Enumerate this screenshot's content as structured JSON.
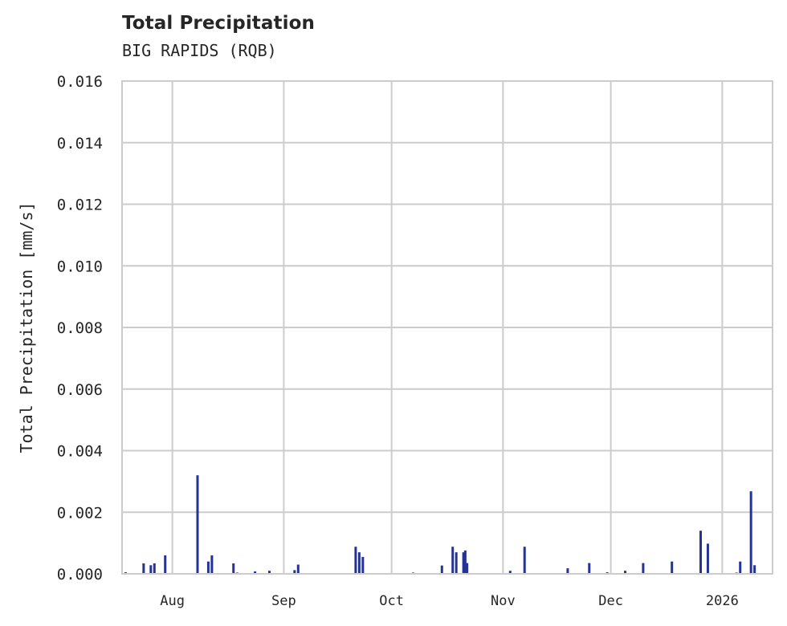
{
  "chart_data": {
    "type": "bar",
    "title": "Total Precipitation",
    "subtitle": "BIG RAPIDS (RQB)",
    "xlabel": "",
    "ylabel": "Total Precipitation [mm/s]",
    "ylim": [
      0,
      0.016
    ],
    "xlim": [
      "2025-07-18",
      "2026-01-15"
    ],
    "grid": true,
    "legend": null,
    "series_color": "#253494",
    "y_ticks": [
      "0.000",
      "0.002",
      "0.004",
      "0.006",
      "0.008",
      "0.010",
      "0.012",
      "0.014",
      "0.016"
    ],
    "x_ticks": [
      {
        "label": "Aug",
        "date": "2025-08-01"
      },
      {
        "label": "Sep",
        "date": "2025-09-01"
      },
      {
        "label": "Oct",
        "date": "2025-10-01"
      },
      {
        "label": "Nov",
        "date": "2025-11-01"
      },
      {
        "label": "Dec",
        "date": "2025-12-01"
      },
      {
        "label": "2026",
        "date": "2026-01-01"
      }
    ],
    "series": [
      {
        "name": "Total Precipitation",
        "points": [
          {
            "x": "2025-07-19",
            "y": 5e-05
          },
          {
            "x": "2025-07-24",
            "y": 0.00034
          },
          {
            "x": "2025-07-26",
            "y": 0.00028
          },
          {
            "x": "2025-07-27",
            "y": 0.00034
          },
          {
            "x": "2025-07-30",
            "y": 0.0006
          },
          {
            "x": "2025-08-08",
            "y": 0.0032
          },
          {
            "x": "2025-08-11",
            "y": 0.0004
          },
          {
            "x": "2025-08-12",
            "y": 0.0006
          },
          {
            "x": "2025-08-18",
            "y": 0.00034
          },
          {
            "x": "2025-08-19",
            "y": 4e-05
          },
          {
            "x": "2025-08-24",
            "y": 8e-05
          },
          {
            "x": "2025-08-28",
            "y": 0.0001
          },
          {
            "x": "2025-09-04",
            "y": 0.00012
          },
          {
            "x": "2025-09-05",
            "y": 0.0003
          },
          {
            "x": "2025-09-21",
            "y": 0.00088
          },
          {
            "x": "2025-09-22",
            "y": 0.0007
          },
          {
            "x": "2025-09-23",
            "y": 0.00055
          },
          {
            "x": "2025-10-07",
            "y": 4e-05
          },
          {
            "x": "2025-10-15",
            "y": 0.00027
          },
          {
            "x": "2025-10-18",
            "y": 0.00088
          },
          {
            "x": "2025-10-19",
            "y": 0.0007
          },
          {
            "x": "2025-10-21",
            "y": 0.0007
          },
          {
            "x": "2025-10-21T12",
            "y": 0.00076
          },
          {
            "x": "2025-10-22",
            "y": 0.00035
          },
          {
            "x": "2025-11-03",
            "y": 0.0001
          },
          {
            "x": "2025-11-07",
            "y": 0.00088
          },
          {
            "x": "2025-11-19",
            "y": 0.00018
          },
          {
            "x": "2025-11-25",
            "y": 0.00035
          },
          {
            "x": "2025-11-30",
            "y": 5e-05
          },
          {
            "x": "2025-12-05",
            "y": 0.0001
          },
          {
            "x": "2025-12-10",
            "y": 0.00035
          },
          {
            "x": "2025-12-18",
            "y": 0.0004
          },
          {
            "x": "2025-12-26",
            "y": 0.0014
          },
          {
            "x": "2025-12-28",
            "y": 0.00098
          },
          {
            "x": "2026-01-05",
            "y": 4e-05
          },
          {
            "x": "2026-01-06",
            "y": 0.0004
          },
          {
            "x": "2026-01-09",
            "y": 0.00268
          },
          {
            "x": "2026-01-10",
            "y": 0.00028
          }
        ]
      }
    ]
  }
}
